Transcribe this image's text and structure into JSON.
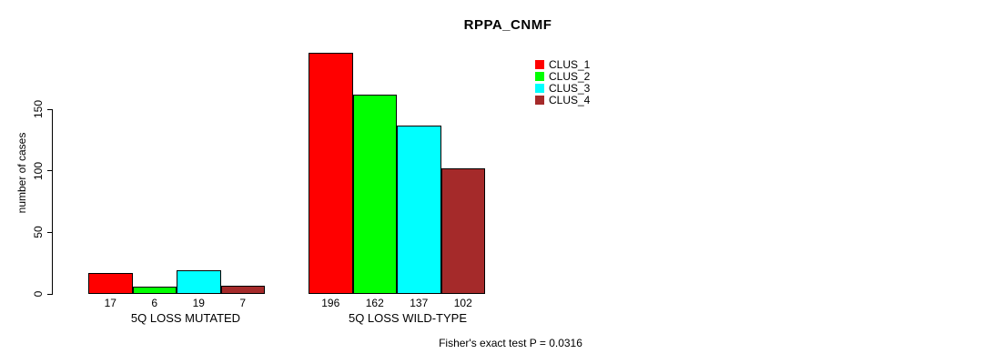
{
  "chart_data": {
    "type": "bar",
    "title": "RPPA_CNMF",
    "ylabel": "number of cases",
    "xlabel": "",
    "categories": [
      "5Q LOSS MUTATED",
      "5Q LOSS WILD-TYPE"
    ],
    "series": [
      {
        "name": "CLUS_1",
        "color": "#FF0000",
        "values": [
          17,
          196
        ]
      },
      {
        "name": "CLUS_2",
        "color": "#00FF00",
        "values": [
          6,
          162
        ]
      },
      {
        "name": "CLUS_3",
        "color": "#00FFFF",
        "values": [
          19,
          137
        ]
      },
      {
        "name": "CLUS_4",
        "color": "#A52A2A",
        "values": [
          7,
          102
        ]
      }
    ],
    "yticks": [
      0,
      50,
      100,
      150
    ],
    "ylim": [
      0,
      196
    ],
    "grid": false,
    "bar_borders": "#000000",
    "bar_value_labels_shown": true,
    "legend_position": "top-right-inside",
    "annotation": "Fisher's exact test P = 0.0316"
  }
}
